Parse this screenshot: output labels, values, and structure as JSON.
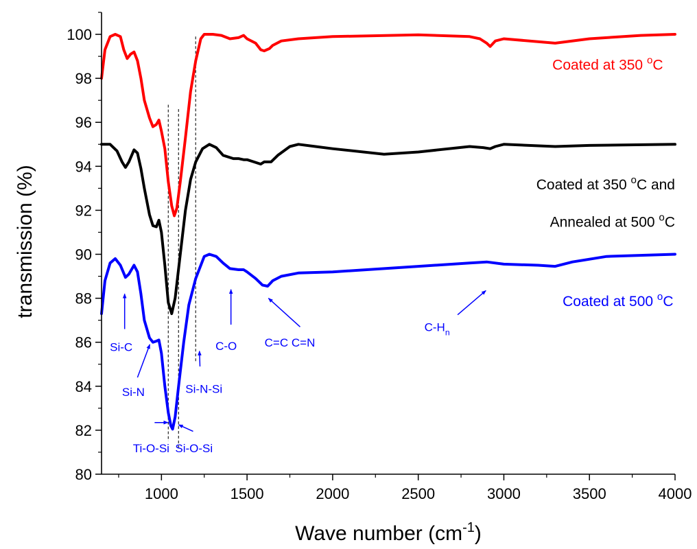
{
  "chart_data": {
    "type": "line",
    "xlabel": "Wave number (cm",
    "xlabel_sup": "-1",
    "xlabel_end": ")",
    "ylabel": "transmission (%)",
    "xlim": [
      650,
      4000
    ],
    "ylim": [
      80,
      101
    ],
    "xticks": [
      1000,
      1500,
      2000,
      2500,
      3000,
      3500,
      4000
    ],
    "yticks": [
      80,
      82,
      84,
      86,
      88,
      90,
      92,
      94,
      96,
      98,
      100
    ],
    "grid": false,
    "series": [
      {
        "key": "s350",
        "label_lines": [
          {
            "parts": [
              {
                "t": "Coated at 350 "
              },
              {
                "t": "o",
                "sup": true
              },
              {
                "t": "C"
              }
            ]
          }
        ],
        "color": "#ff0000",
        "points": [
          [
            650,
            98.0
          ],
          [
            670,
            99.3
          ],
          [
            700,
            99.9
          ],
          [
            730,
            100.0
          ],
          [
            760,
            99.9
          ],
          [
            780,
            99.3
          ],
          [
            800,
            98.9
          ],
          [
            820,
            99.1
          ],
          [
            840,
            99.2
          ],
          [
            860,
            98.8
          ],
          [
            880,
            98.0
          ],
          [
            900,
            97.0
          ],
          [
            930,
            96.2
          ],
          [
            950,
            95.8
          ],
          [
            970,
            95.9
          ],
          [
            985,
            96.1
          ],
          [
            1000,
            95.6
          ],
          [
            1020,
            94.8
          ],
          [
            1040,
            93.3
          ],
          [
            1060,
            92.2
          ],
          [
            1075,
            91.75
          ],
          [
            1090,
            92.1
          ],
          [
            1110,
            93.3
          ],
          [
            1140,
            95.3
          ],
          [
            1170,
            97.4
          ],
          [
            1200,
            98.8
          ],
          [
            1230,
            99.8
          ],
          [
            1250,
            100.0
          ],
          [
            1300,
            100.0
          ],
          [
            1350,
            99.95
          ],
          [
            1400,
            99.8
          ],
          [
            1450,
            99.85
          ],
          [
            1480,
            99.95
          ],
          [
            1500,
            99.8
          ],
          [
            1550,
            99.6
          ],
          [
            1580,
            99.3
          ],
          [
            1600,
            99.25
          ],
          [
            1630,
            99.35
          ],
          [
            1650,
            99.5
          ],
          [
            1700,
            99.7
          ],
          [
            1800,
            99.8
          ],
          [
            2000,
            99.9
          ],
          [
            2500,
            99.98
          ],
          [
            2800,
            99.9
          ],
          [
            2860,
            99.8
          ],
          [
            2900,
            99.6
          ],
          [
            2920,
            99.45
          ],
          [
            2950,
            99.7
          ],
          [
            3000,
            99.8
          ],
          [
            3300,
            99.6
          ],
          [
            3500,
            99.8
          ],
          [
            3800,
            99.95
          ],
          [
            4000,
            100.0
          ]
        ]
      },
      {
        "key": "s350a",
        "label_lines": [
          {
            "parts": [
              {
                "t": "Coated at 350 "
              },
              {
                "t": "o",
                "sup": true
              },
              {
                "t": "C and"
              }
            ]
          },
          {
            "parts": [
              {
                "t": "Annealed at 500 "
              },
              {
                "t": "o",
                "sup": true
              },
              {
                "t": "C"
              }
            ]
          }
        ],
        "color": "#000000",
        "points": [
          [
            650,
            95.0
          ],
          [
            700,
            95.0
          ],
          [
            740,
            94.7
          ],
          [
            770,
            94.2
          ],
          [
            790,
            93.95
          ],
          [
            810,
            94.2
          ],
          [
            840,
            94.75
          ],
          [
            860,
            94.6
          ],
          [
            880,
            93.9
          ],
          [
            900,
            93.0
          ],
          [
            930,
            91.8
          ],
          [
            950,
            91.3
          ],
          [
            970,
            91.25
          ],
          [
            985,
            91.55
          ],
          [
            1000,
            91.0
          ],
          [
            1020,
            89.5
          ],
          [
            1040,
            87.8
          ],
          [
            1060,
            87.3
          ],
          [
            1080,
            88.0
          ],
          [
            1110,
            90.0
          ],
          [
            1140,
            92.0
          ],
          [
            1170,
            93.4
          ],
          [
            1200,
            94.2
          ],
          [
            1240,
            94.8
          ],
          [
            1280,
            95.0
          ],
          [
            1320,
            94.85
          ],
          [
            1360,
            94.5
          ],
          [
            1420,
            94.35
          ],
          [
            1450,
            94.35
          ],
          [
            1480,
            94.3
          ],
          [
            1500,
            94.3
          ],
          [
            1540,
            94.2
          ],
          [
            1580,
            94.1
          ],
          [
            1600,
            94.2
          ],
          [
            1640,
            94.2
          ],
          [
            1680,
            94.5
          ],
          [
            1750,
            94.9
          ],
          [
            1800,
            95.0
          ],
          [
            1900,
            94.9
          ],
          [
            2000,
            94.8
          ],
          [
            2300,
            94.55
          ],
          [
            2500,
            94.65
          ],
          [
            2800,
            94.9
          ],
          [
            2880,
            94.85
          ],
          [
            2920,
            94.8
          ],
          [
            2950,
            94.9
          ],
          [
            3000,
            95.0
          ],
          [
            3300,
            94.9
          ],
          [
            3500,
            94.95
          ],
          [
            4000,
            95.0
          ]
        ]
      },
      {
        "key": "s500",
        "label_lines": [
          {
            "parts": [
              {
                "t": "Coated at 500 "
              },
              {
                "t": "o",
                "sup": true
              },
              {
                "t": "C"
              }
            ]
          }
        ],
        "color": "#0000ff",
        "points": [
          [
            650,
            87.3
          ],
          [
            670,
            88.8
          ],
          [
            700,
            89.6
          ],
          [
            730,
            89.8
          ],
          [
            760,
            89.5
          ],
          [
            790,
            88.95
          ],
          [
            810,
            89.1
          ],
          [
            840,
            89.5
          ],
          [
            860,
            89.2
          ],
          [
            880,
            88.2
          ],
          [
            900,
            87.0
          ],
          [
            930,
            86.2
          ],
          [
            950,
            86.0
          ],
          [
            970,
            86.05
          ],
          [
            985,
            86.1
          ],
          [
            1000,
            85.5
          ],
          [
            1020,
            84.0
          ],
          [
            1040,
            82.8
          ],
          [
            1055,
            82.2
          ],
          [
            1065,
            82.05
          ],
          [
            1080,
            82.6
          ],
          [
            1100,
            84.0
          ],
          [
            1130,
            86.0
          ],
          [
            1160,
            87.7
          ],
          [
            1200,
            88.9
          ],
          [
            1250,
            89.9
          ],
          [
            1280,
            90.0
          ],
          [
            1320,
            89.9
          ],
          [
            1360,
            89.6
          ],
          [
            1400,
            89.35
          ],
          [
            1450,
            89.3
          ],
          [
            1480,
            89.3
          ],
          [
            1500,
            89.2
          ],
          [
            1550,
            88.9
          ],
          [
            1590,
            88.6
          ],
          [
            1620,
            88.55
          ],
          [
            1650,
            88.8
          ],
          [
            1700,
            89.0
          ],
          [
            1800,
            89.15
          ],
          [
            2000,
            89.2
          ],
          [
            2500,
            89.45
          ],
          [
            2800,
            89.6
          ],
          [
            2900,
            89.65
          ],
          [
            3000,
            89.55
          ],
          [
            3200,
            89.5
          ],
          [
            3300,
            89.45
          ],
          [
            3400,
            89.65
          ],
          [
            3600,
            89.9
          ],
          [
            4000,
            90.0
          ]
        ]
      }
    ],
    "dashed_lines": [
      {
        "x": 1040,
        "y_top": 96.8,
        "y_bottom": 81.5
      },
      {
        "x": 1100,
        "y_top": 96.6,
        "y_bottom": 81.2
      },
      {
        "x": 1200,
        "y_top": 99.9,
        "y_bottom": 85.1
      }
    ],
    "series_labels": [
      {
        "series": "s350",
        "x": 3930,
        "y": 98.4
      },
      {
        "series": "s350a",
        "x": 4000,
        "y": 92.95,
        "line_gap": 1.7
      },
      {
        "series": "s500",
        "x": 3990,
        "y": 87.65
      }
    ],
    "annotations": [
      {
        "parts": [
          {
            "t": "Si-C"
          }
        ],
        "x": 765,
        "y": 85.6,
        "anchor": "middle",
        "arrow_from": [
          785,
          86.6
        ],
        "arrow_to": [
          785,
          88.2
        ]
      },
      {
        "parts": [
          {
            "t": "Si-N"
          }
        ],
        "x": 836,
        "y": 83.55,
        "anchor": "middle",
        "arrow_from": [
          860,
          84.4
        ],
        "arrow_to": [
          932,
          85.9
        ]
      },
      {
        "parts": [
          {
            "t": "Ti-O-Si"
          }
        ],
        "x": 940,
        "y": 81.0,
        "anchor": "middle",
        "arrow_from": [
          960,
          82.35
        ],
        "arrow_to": [
          1038,
          82.35
        ]
      },
      {
        "parts": [
          {
            "t": "Si-O-Si"
          }
        ],
        "x": 1190,
        "y": 81.0,
        "anchor": "middle",
        "arrow_from": [
          1185,
          81.95
        ],
        "arrow_to": [
          1100,
          82.25
        ]
      },
      {
        "parts": [
          {
            "t": "Si-N-Si"
          }
        ],
        "x": 1248,
        "y": 83.7,
        "anchor": "middle",
        "arrow_from": [
          1225,
          84.9
        ],
        "arrow_to": [
          1222,
          85.6
        ]
      },
      {
        "parts": [
          {
            "t": "C-O"
          }
        ],
        "x": 1378,
        "y": 85.65,
        "anchor": "middle",
        "arrow_from": [
          1406,
          86.8
        ],
        "arrow_to": [
          1406,
          88.4
        ]
      },
      {
        "parts": [
          {
            "t": "C=C C=N"
          }
        ],
        "x": 1750,
        "y": 85.8,
        "anchor": "middle",
        "arrow_from": [
          1810,
          86.7
        ],
        "arrow_to": [
          1625,
          88.0
        ]
      },
      {
        "parts": [
          {
            "t": "C-H"
          },
          {
            "t": "n",
            "sub": true
          }
        ],
        "x": 2610,
        "y": 86.5,
        "anchor": "middle",
        "arrow_from": [
          2730,
          87.25
        ],
        "arrow_to": [
          2895,
          88.35
        ]
      }
    ]
  }
}
